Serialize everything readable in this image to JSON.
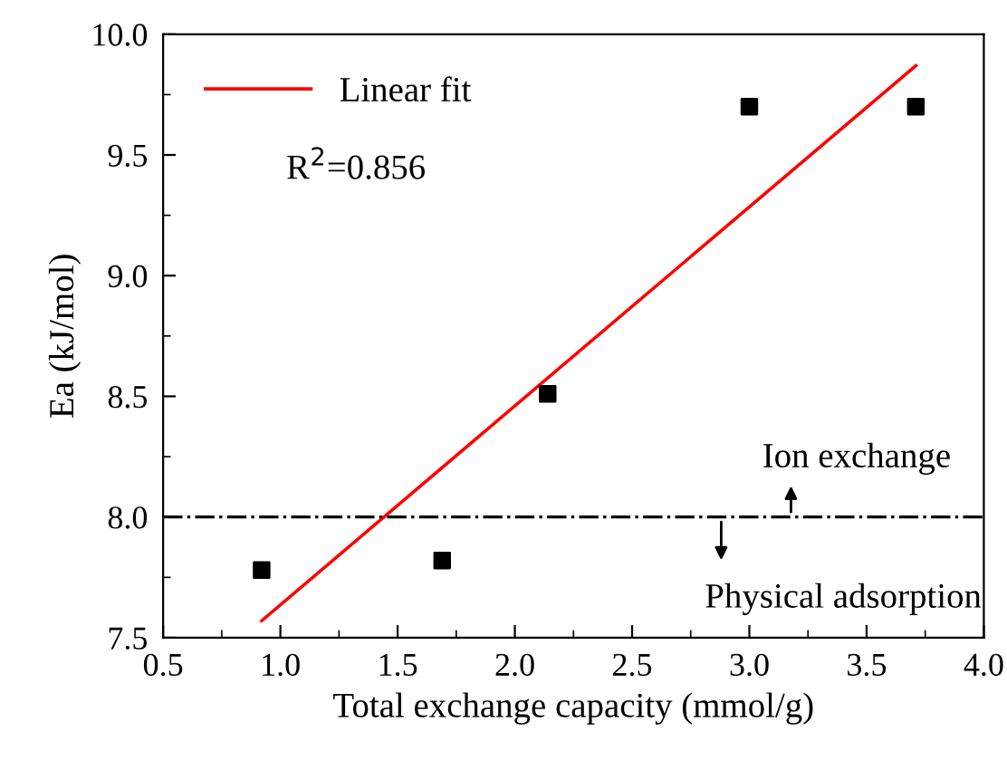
{
  "chart_data": {
    "type": "scatter",
    "xlabel": "Total exchange capacity (mmol/g)",
    "ylabel": "Ea (kJ/mol)",
    "xlim": [
      0.5,
      4.0
    ],
    "xticks": [
      {
        "value": 0.5,
        "label": "0.5"
      },
      {
        "value": 1.0,
        "label": "1.0"
      },
      {
        "value": 1.5,
        "label": "1.5"
      },
      {
        "value": 2.0,
        "label": "2.0"
      },
      {
        "value": 2.5,
        "label": "2.5"
      },
      {
        "value": 3.0,
        "label": "3.0"
      },
      {
        "value": 3.5,
        "label": "3.5"
      },
      {
        "value": 4.0,
        "label": "4.0"
      }
    ],
    "ylim": [
      7.5,
      10.0
    ],
    "yticks": [
      {
        "value": 7.5,
        "label": "7.5"
      },
      {
        "value": 8.0,
        "label": "8.0"
      },
      {
        "value": 8.5,
        "label": "8.5"
      },
      {
        "value": 9.0,
        "label": "9.0"
      },
      {
        "value": 9.5,
        "label": "9.5"
      },
      {
        "value": 10.0,
        "label": "10.0"
      }
    ],
    "series": [
      {
        "color": "#000000",
        "marker": "square",
        "x": [
          0.92,
          1.69,
          2.14,
          3.0,
          3.71
        ],
        "values": [
          7.78,
          7.82,
          8.51,
          9.7,
          9.7
        ]
      },
      {
        "type": "line",
        "name": "Linear fit",
        "color": "#ff0000",
        "marker": "none",
        "line_style": "solid",
        "x": [
          0.92,
          3.71
        ],
        "values": [
          7.57,
          9.87
        ]
      }
    ],
    "ref_lines": [
      {
        "axis": "y",
        "value": 8.0,
        "color": "#000000",
        "line_style": "dashdot"
      }
    ],
    "annotations": [
      "R$^{2}$=0.856",
      "Ion exchange",
      "Physical adsorption"
    ],
    "legend": "top left",
    "grid": false
  }
}
